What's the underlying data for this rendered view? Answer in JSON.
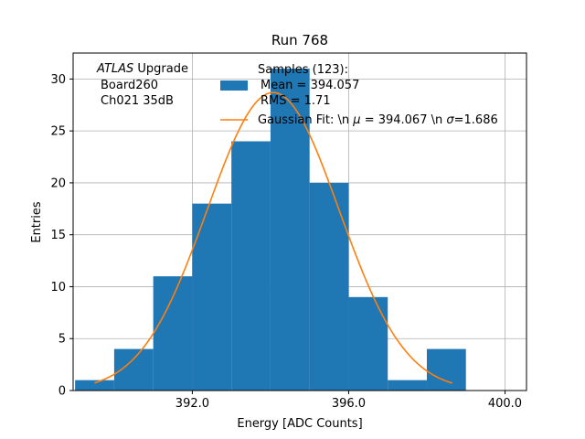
{
  "chart_data": {
    "type": "bar",
    "title": "Run 768",
    "xlabel": "Energy [ADC Counts]",
    "ylabel": "Entries",
    "xlim": [
      388.95,
      400.55
    ],
    "ylim": [
      0,
      32.5
    ],
    "xticks": [
      392.0,
      396.0,
      400.0
    ],
    "xtick_labels": [
      "392.0",
      "396.0",
      "400.0"
    ],
    "yticks": [
      0,
      5,
      10,
      15,
      20,
      25,
      30
    ],
    "ytick_labels": [
      "0",
      "5",
      "10",
      "15",
      "20",
      "25",
      "30"
    ],
    "grid": true,
    "bin_edges": [
      389.0,
      390.0,
      391.0,
      392.0,
      393.0,
      394.0,
      395.0,
      396.0,
      397.0,
      398.0,
      399.0
    ],
    "counts": [
      1,
      4,
      11,
      18,
      24,
      31,
      20,
      9,
      1,
      4
    ],
    "series": [
      {
        "name": "Samples (123):\n Mean = 394.057\n RMS = 1.71",
        "type": "histogram",
        "color": "#1f77b4"
      },
      {
        "name": "Gaussian Fit: \\n μ = 394.067 \\n σ=1.686",
        "type": "line",
        "color": "#ff7f0e",
        "fit": {
          "mu": 394.067,
          "sigma": 1.686,
          "amplitude": 28.7,
          "x_start": 389.5,
          "x_end": 398.65
        }
      }
    ],
    "legend_placement": "top-right"
  },
  "annotation": {
    "italic_part": "ATLAS",
    "line1_rest": " Upgrade",
    "line2": "Board260",
    "line3": "Ch021 35dB"
  },
  "legend": {
    "hist_line1": "Samples (123):",
    "hist_line2": "Mean = 394.057",
    "hist_line3": "RMS = 1.71",
    "fit_prefix": "Gaussian Fit: \\n ",
    "fit_mu_sym": "μ",
    "fit_mid": " = 394.067 \\n ",
    "fit_sigma_sym": "σ",
    "fit_suffix": "=1.686"
  }
}
